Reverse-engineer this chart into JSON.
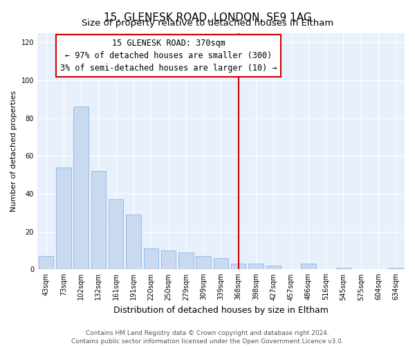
{
  "title": "15, GLENESK ROAD, LONDON, SE9 1AG",
  "subtitle": "Size of property relative to detached houses in Eltham",
  "xlabel": "Distribution of detached houses by size in Eltham",
  "ylabel": "Number of detached properties",
  "categories": [
    "43sqm",
    "73sqm",
    "102sqm",
    "132sqm",
    "161sqm",
    "191sqm",
    "220sqm",
    "250sqm",
    "279sqm",
    "309sqm",
    "339sqm",
    "368sqm",
    "398sqm",
    "427sqm",
    "457sqm",
    "486sqm",
    "516sqm",
    "545sqm",
    "575sqm",
    "604sqm",
    "634sqm"
  ],
  "values": [
    7,
    54,
    86,
    52,
    37,
    29,
    11,
    10,
    9,
    7,
    6,
    3,
    3,
    2,
    0,
    3,
    0,
    1,
    0,
    0,
    1
  ],
  "bar_color": "#c8d9f0",
  "bar_edge_color": "#8db4e2",
  "annotation_title": "15 GLENESK ROAD: 370sqm",
  "annotation_line1": "← 97% of detached houses are smaller (300)",
  "annotation_line2": "3% of semi-detached houses are larger (10) →",
  "vline_color": "#cc0000",
  "annotation_box_facecolor": "#ffffff",
  "annotation_box_edgecolor": "#cc0000",
  "ylim": [
    0,
    125
  ],
  "yticks": [
    0,
    20,
    40,
    60,
    80,
    100,
    120
  ],
  "footer_line1": "Contains HM Land Registry data © Crown copyright and database right 2024.",
  "footer_line2": "Contains public sector information licensed under the Open Government Licence v3.0.",
  "figure_background": "#ffffff",
  "plot_background": "#e8f0fb",
  "title_fontsize": 11,
  "subtitle_fontsize": 9.5,
  "xlabel_fontsize": 9,
  "ylabel_fontsize": 8,
  "tick_fontsize": 7,
  "footer_fontsize": 6.5,
  "annotation_fontsize": 8.5
}
